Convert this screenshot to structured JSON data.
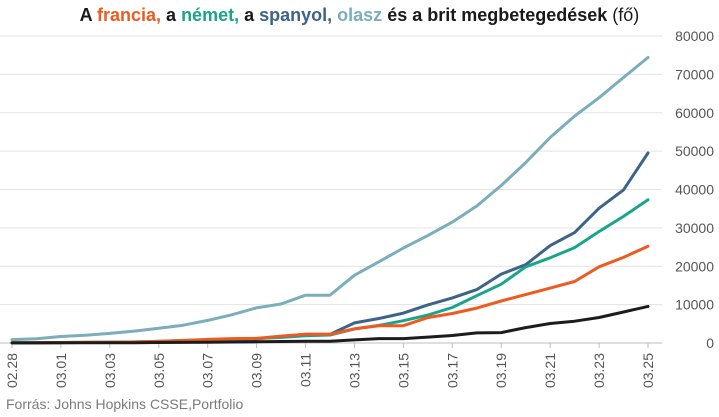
{
  "title_parts": [
    {
      "text": "A ",
      "color": "#1a1a1a"
    },
    {
      "text": "francia,",
      "color": "#ee5a1f"
    },
    {
      "text": " a ",
      "color": "#1a1a1a"
    },
    {
      "text": "német,",
      "color": "#1aa58a"
    },
    {
      "text": " a ",
      "color": "#1a1a1a"
    },
    {
      "text": "spanyol,",
      "color": "#3d6388"
    },
    {
      "text": " ",
      "color": "#1a1a1a"
    },
    {
      "text": "olasz",
      "color": "#7aaebc"
    },
    {
      "text": " és a brit megbetegedések",
      "color": "#1a1a1a"
    }
  ],
  "title_unit": " (fő)",
  "source": "Forrás: Johns Hopkins CSSE,Portfolio",
  "chart_data": {
    "type": "line",
    "title": "A francia, a német, a spanyol, olasz és a brit megbetegedések (fő)",
    "ylim": [
      0,
      80000
    ],
    "y_ticks": [
      0,
      10000,
      20000,
      30000,
      40000,
      50000,
      60000,
      70000,
      80000
    ],
    "y_tick_labels": [
      "0",
      "10000",
      "20000",
      "30000",
      "40000",
      "50000",
      "60000",
      "70000",
      "80000"
    ],
    "x_tick_labels": [
      "02.28",
      "03.01",
      "03.03",
      "03.05",
      "03.07",
      "03.09",
      "03.11",
      "03.13",
      "03.15",
      "03.17",
      "03.19",
      "03.21",
      "03.23",
      "03.25"
    ],
    "x_tick_every": 2,
    "grid": true,
    "x": [
      "02.28",
      "02.29",
      "03.01",
      "03.02",
      "03.03",
      "03.04",
      "03.05",
      "03.06",
      "03.07",
      "03.08",
      "03.09",
      "03.10",
      "03.11",
      "03.12",
      "03.13",
      "03.14",
      "03.15",
      "03.16",
      "03.17",
      "03.18",
      "03.19",
      "03.20",
      "03.21",
      "03.22",
      "03.23",
      "03.24",
      "03.25"
    ],
    "series": [
      {
        "name": "olasz",
        "color": "#7aaebc",
        "values": [
          890,
          1130,
          1690,
          2030,
          2500,
          3090,
          3860,
          4640,
          5880,
          7380,
          9170,
          10150,
          12460,
          12460,
          17660,
          21160,
          24750,
          27980,
          31500,
          35710,
          41040,
          47020,
          53580,
          59140,
          63930,
          69180,
          74390
        ]
      },
      {
        "name": "spanyol",
        "color": "#3d6388",
        "values": [
          30,
          40,
          80,
          120,
          170,
          230,
          280,
          400,
          500,
          670,
          1080,
          1700,
          2280,
          2280,
          5230,
          6390,
          7800,
          9940,
          11750,
          13910,
          17960,
          20410,
          25370,
          28770,
          35140,
          39890,
          49520
        ]
      },
      {
        "name": "német",
        "color": "#1aa58a",
        "values": [
          60,
          70,
          130,
          160,
          200,
          260,
          480,
          670,
          800,
          1040,
          1180,
          1460,
          1900,
          2080,
          3680,
          4590,
          5800,
          7270,
          9260,
          12330,
          15320,
          19850,
          22210,
          24870,
          29060,
          32990,
          37320
        ]
      },
      {
        "name": "francia",
        "color": "#ee5a1f",
        "values": [
          60,
          100,
          130,
          190,
          210,
          290,
          420,
          660,
          950,
          1140,
          1210,
          1790,
          2290,
          2290,
          3670,
          4480,
          4520,
          6630,
          7700,
          9100,
          10950,
          12610,
          14300,
          16020,
          19860,
          22300,
          25230
        ]
      },
      {
        "name": "brit",
        "color": "#1c1c1c",
        "values": [
          20,
          20,
          40,
          40,
          50,
          90,
          120,
          160,
          210,
          270,
          320,
          380,
          460,
          460,
          800,
          1140,
          1140,
          1540,
          1960,
          2640,
          2720,
          4010,
          5070,
          5680,
          6650,
          8080,
          9530
        ]
      }
    ]
  }
}
